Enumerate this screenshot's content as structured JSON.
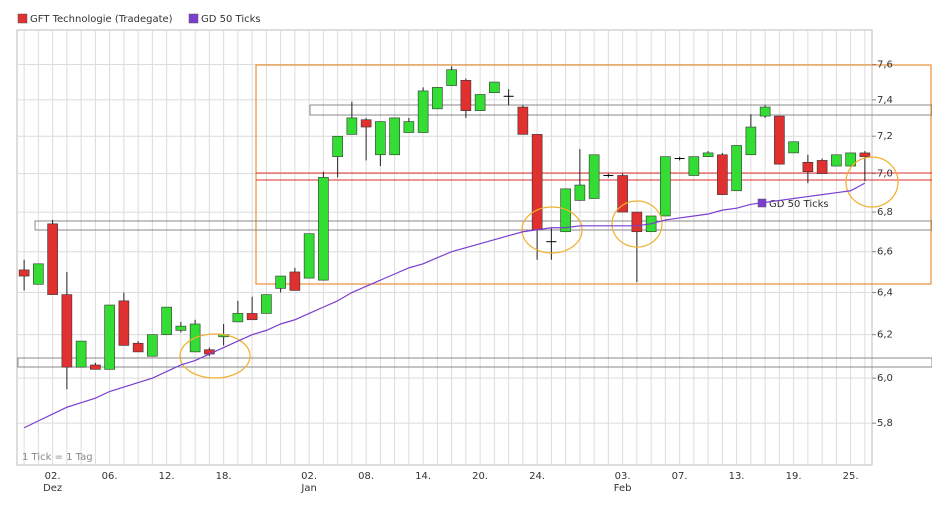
{
  "chart_data": {
    "type": "candlestick",
    "name": "GFT Technologie (Tradegate)",
    "color": "#e03030",
    "up_color": "#33dd33",
    "down_color": "#e03030",
    "note": "1 Tick = 1 Tag",
    "log_scale": true,
    "grid": true,
    "categories": [
      null,
      null,
      "02.",
      null,
      null,
      null,
      "06.",
      null,
      null,
      null,
      "12.",
      null,
      null,
      null,
      "18.",
      null,
      null,
      null,
      null,
      null,
      "02.",
      null,
      null,
      null,
      "08.",
      null,
      null,
      null,
      "14.",
      null,
      null,
      null,
      "20.",
      null,
      null,
      null,
      "24.",
      null,
      null,
      null,
      null,
      null,
      "03.",
      null,
      null,
      null,
      "07.",
      null,
      null,
      null,
      "13.",
      null,
      null,
      null,
      "19.",
      null,
      null,
      null,
      "25.",
      null
    ],
    "month_labels": [
      null,
      null,
      "Dez",
      null,
      null,
      null,
      null,
      null,
      null,
      null,
      null,
      null,
      null,
      null,
      null,
      null,
      null,
      null,
      null,
      null,
      "Jan",
      null,
      null,
      null,
      null,
      null,
      null,
      null,
      null,
      null,
      null,
      null,
      null,
      null,
      null,
      null,
      null,
      null,
      null,
      null,
      null,
      null,
      "Feb",
      null,
      null,
      null,
      null,
      null,
      null,
      null,
      null,
      null,
      null,
      null,
      null,
      null,
      null,
      null,
      null,
      null
    ],
    "open": [
      6.51,
      6.44,
      6.74,
      6.39,
      6.05,
      6.06,
      6.04,
      6.36,
      6.16,
      6.1,
      6.2,
      6.22,
      6.12,
      6.13,
      6.19,
      6.26,
      6.3,
      6.3,
      6.42,
      6.5,
      6.47,
      6.46,
      7.09,
      7.21,
      7.29,
      7.1,
      7.1,
      7.22,
      7.22,
      7.35,
      7.48,
      7.51,
      7.34,
      7.44,
      7.42,
      7.36,
      7.21,
      6.65,
      6.7,
      6.86,
      6.87,
      6.99,
      6.99,
      6.8,
      6.7,
      6.78,
      7.08,
      6.99,
      7.09,
      7.1,
      6.91,
      7.1,
      7.31,
      7.31,
      7.11,
      7.06,
      7.07,
      7.04,
      7.04,
      7.11
    ],
    "high": [
      6.56,
      6.54,
      6.76,
      6.5,
      6.17,
      6.07,
      6.34,
      6.4,
      6.17,
      6.2,
      6.33,
      6.26,
      6.27,
      6.14,
      6.25,
      6.36,
      6.38,
      6.39,
      6.48,
      6.52,
      6.69,
      7.01,
      7.2,
      7.39,
      7.3,
      7.28,
      7.3,
      7.3,
      7.47,
      7.47,
      7.59,
      7.52,
      7.43,
      7.5,
      7.46,
      7.37,
      7.21,
      6.72,
      6.92,
      7.13,
      7.1,
      7.0,
      7.0,
      6.8,
      6.78,
      7.09,
      7.09,
      7.09,
      7.12,
      7.11,
      7.15,
      7.32,
      7.37,
      7.31,
      7.17,
      7.1,
      7.08,
      7.1,
      7.11,
      7.12
    ],
    "low": [
      6.41,
      6.44,
      6.39,
      5.95,
      6.05,
      6.04,
      6.04,
      6.15,
      6.12,
      6.1,
      6.2,
      6.21,
      6.12,
      6.1,
      6.15,
      6.26,
      6.27,
      6.3,
      6.4,
      6.41,
      6.47,
      6.46,
      6.98,
      7.21,
      7.07,
      7.04,
      7.1,
      7.22,
      7.22,
      7.35,
      7.48,
      7.3,
      7.34,
      7.44,
      7.37,
      7.21,
      6.56,
      6.56,
      6.7,
      6.86,
      6.87,
      6.98,
      6.8,
      6.45,
      6.7,
      6.78,
      7.07,
      6.99,
      7.09,
      6.89,
      6.91,
      7.1,
      7.3,
      7.05,
      7.11,
      6.95,
      7.0,
      7.04,
      7.04,
      6.96
    ],
    "close": [
      6.48,
      6.54,
      6.39,
      6.05,
      6.17,
      6.04,
      6.34,
      6.15,
      6.12,
      6.2,
      6.33,
      6.24,
      6.25,
      6.11,
      6.2,
      6.3,
      6.27,
      6.39,
      6.48,
      6.41,
      6.69,
      6.98,
      7.2,
      7.3,
      7.25,
      7.28,
      7.3,
      7.28,
      7.45,
      7.47,
      7.57,
      7.34,
      7.43,
      7.5,
      7.42,
      7.21,
      6.71,
      6.65,
      6.92,
      6.94,
      7.1,
      6.99,
      6.8,
      6.7,
      6.78,
      7.09,
      7.08,
      7.09,
      7.11,
      6.89,
      7.15,
      7.25,
      7.36,
      7.05,
      7.17,
      7.01,
      7.0,
      7.1,
      7.11,
      7.09
    ],
    "series": [
      {
        "name": "GD 50 Ticks",
        "color": "#7a3fd0",
        "values": [
          5.78,
          5.81,
          5.84,
          5.87,
          5.89,
          5.91,
          5.94,
          5.96,
          5.98,
          6.0,
          6.03,
          6.06,
          6.08,
          6.11,
          6.14,
          6.17,
          6.2,
          6.22,
          6.25,
          6.27,
          6.3,
          6.33,
          6.36,
          6.4,
          6.43,
          6.46,
          6.49,
          6.52,
          6.54,
          6.57,
          6.6,
          6.62,
          6.64,
          6.66,
          6.68,
          6.7,
          6.71,
          6.72,
          6.72,
          6.73,
          6.73,
          6.73,
          6.73,
          6.73,
          6.74,
          6.76,
          6.77,
          6.78,
          6.79,
          6.81,
          6.82,
          6.84,
          6.85,
          6.86,
          6.87,
          6.88,
          6.89,
          6.9,
          6.91,
          6.95
        ]
      }
    ],
    "ylim": [
      5.62,
      7.8
    ],
    "yticks": [
      {
        "value": 5.8,
        "label": "5,8"
      },
      {
        "value": 6.0,
        "label": "6,0"
      },
      {
        "value": 6.2,
        "label": "6,2"
      },
      {
        "value": 6.4,
        "label": "6,4"
      },
      {
        "value": 6.6,
        "label": "6,6"
      },
      {
        "value": 6.8,
        "label": "6,8"
      },
      {
        "value": 7.0,
        "label": "7,0"
      },
      {
        "value": 7.2,
        "label": "7,2"
      },
      {
        "value": 7.4,
        "label": "7,4"
      },
      {
        "value": 7.6,
        "label": "7,6"
      }
    ]
  }
}
